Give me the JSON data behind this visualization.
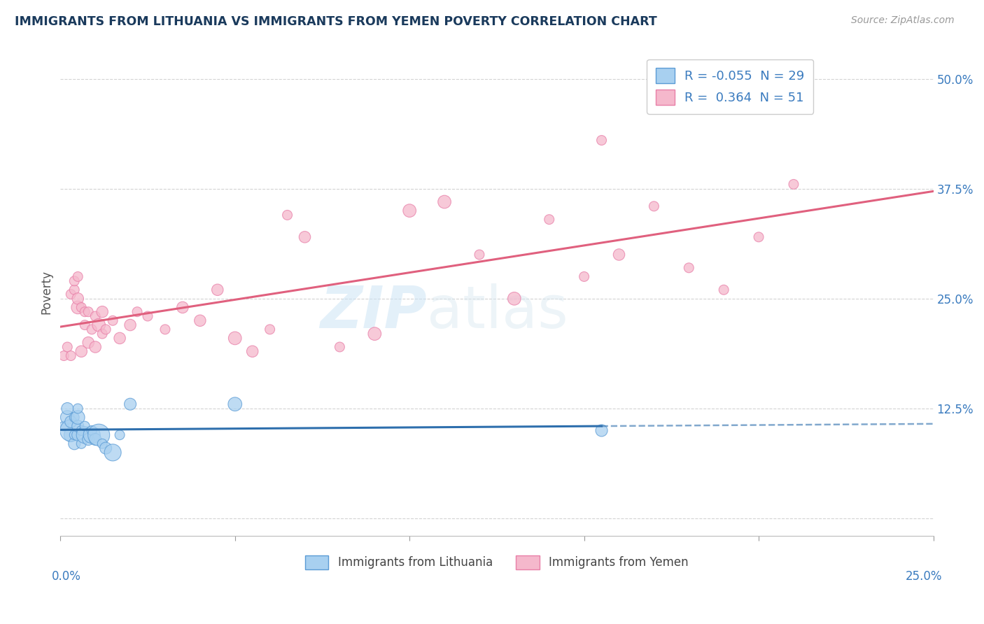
{
  "title": "IMMIGRANTS FROM LITHUANIA VS IMMIGRANTS FROM YEMEN POVERTY CORRELATION CHART",
  "source": "Source: ZipAtlas.com",
  "ylabel": "Poverty",
  "yticks": [
    0.0,
    0.125,
    0.25,
    0.375,
    0.5
  ],
  "ytick_labels": [
    "",
    "12.5%",
    "25.0%",
    "37.5%",
    "50.0%"
  ],
  "xlim": [
    0.0,
    0.25
  ],
  "ylim": [
    -0.02,
    0.535
  ],
  "legend_blue_r": "-0.055",
  "legend_blue_n": "29",
  "legend_pink_r": "0.364",
  "legend_pink_n": "51",
  "blue_color": "#a8d0f0",
  "pink_color": "#f5b8cc",
  "blue_edge_color": "#5b9bd5",
  "pink_edge_color": "#e87fa8",
  "blue_line_color": "#2e6fad",
  "pink_line_color": "#e0607e",
  "tick_color": "#3a7bbf",
  "background_color": "#ffffff",
  "blue_scatter_x": [
    0.001,
    0.002,
    0.002,
    0.003,
    0.003,
    0.003,
    0.004,
    0.004,
    0.004,
    0.005,
    0.005,
    0.005,
    0.005,
    0.006,
    0.006,
    0.007,
    0.007,
    0.008,
    0.009,
    0.009,
    0.01,
    0.011,
    0.012,
    0.013,
    0.015,
    0.017,
    0.02,
    0.05,
    0.155
  ],
  "blue_scatter_y": [
    0.105,
    0.115,
    0.125,
    0.095,
    0.1,
    0.11,
    0.085,
    0.095,
    0.115,
    0.095,
    0.105,
    0.115,
    0.125,
    0.085,
    0.1,
    0.095,
    0.105,
    0.09,
    0.095,
    0.1,
    0.09,
    0.095,
    0.085,
    0.08,
    0.075,
    0.095,
    0.13,
    0.13,
    0.1
  ],
  "pink_scatter_x": [
    0.001,
    0.002,
    0.003,
    0.003,
    0.004,
    0.004,
    0.005,
    0.005,
    0.005,
    0.006,
    0.006,
    0.007,
    0.007,
    0.008,
    0.008,
    0.009,
    0.01,
    0.01,
    0.011,
    0.012,
    0.012,
    0.013,
    0.015,
    0.017,
    0.02,
    0.022,
    0.025,
    0.03,
    0.035,
    0.04,
    0.045,
    0.05,
    0.055,
    0.06,
    0.065,
    0.07,
    0.08,
    0.09,
    0.1,
    0.11,
    0.12,
    0.13,
    0.14,
    0.15,
    0.155,
    0.16,
    0.17,
    0.18,
    0.19,
    0.2,
    0.21
  ],
  "pink_scatter_y": [
    0.185,
    0.195,
    0.185,
    0.255,
    0.26,
    0.27,
    0.24,
    0.25,
    0.275,
    0.19,
    0.24,
    0.22,
    0.235,
    0.2,
    0.235,
    0.215,
    0.195,
    0.23,
    0.22,
    0.21,
    0.235,
    0.215,
    0.225,
    0.205,
    0.22,
    0.235,
    0.23,
    0.215,
    0.24,
    0.225,
    0.26,
    0.205,
    0.19,
    0.215,
    0.345,
    0.32,
    0.195,
    0.21,
    0.35,
    0.36,
    0.3,
    0.25,
    0.34,
    0.275,
    0.43,
    0.3,
    0.355,
    0.285,
    0.26,
    0.32,
    0.38
  ]
}
